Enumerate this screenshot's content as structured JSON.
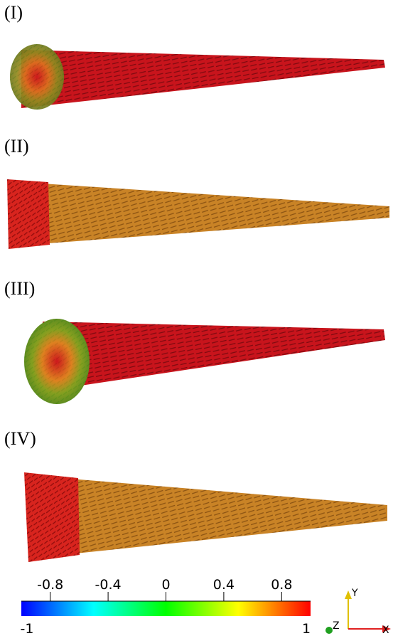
{
  "panels": [
    {
      "label": "(I)"
    },
    {
      "label": "(II)"
    },
    {
      "label": "(III)"
    },
    {
      "label": "(IV)"
    }
  ],
  "colorbar": {
    "range": [
      -1,
      1
    ],
    "ticks": [
      -0.8,
      -0.4,
      0,
      0.4,
      0.8
    ]
  },
  "axes_triad": {
    "y": "Y",
    "z": "Z",
    "x": "X"
  }
}
